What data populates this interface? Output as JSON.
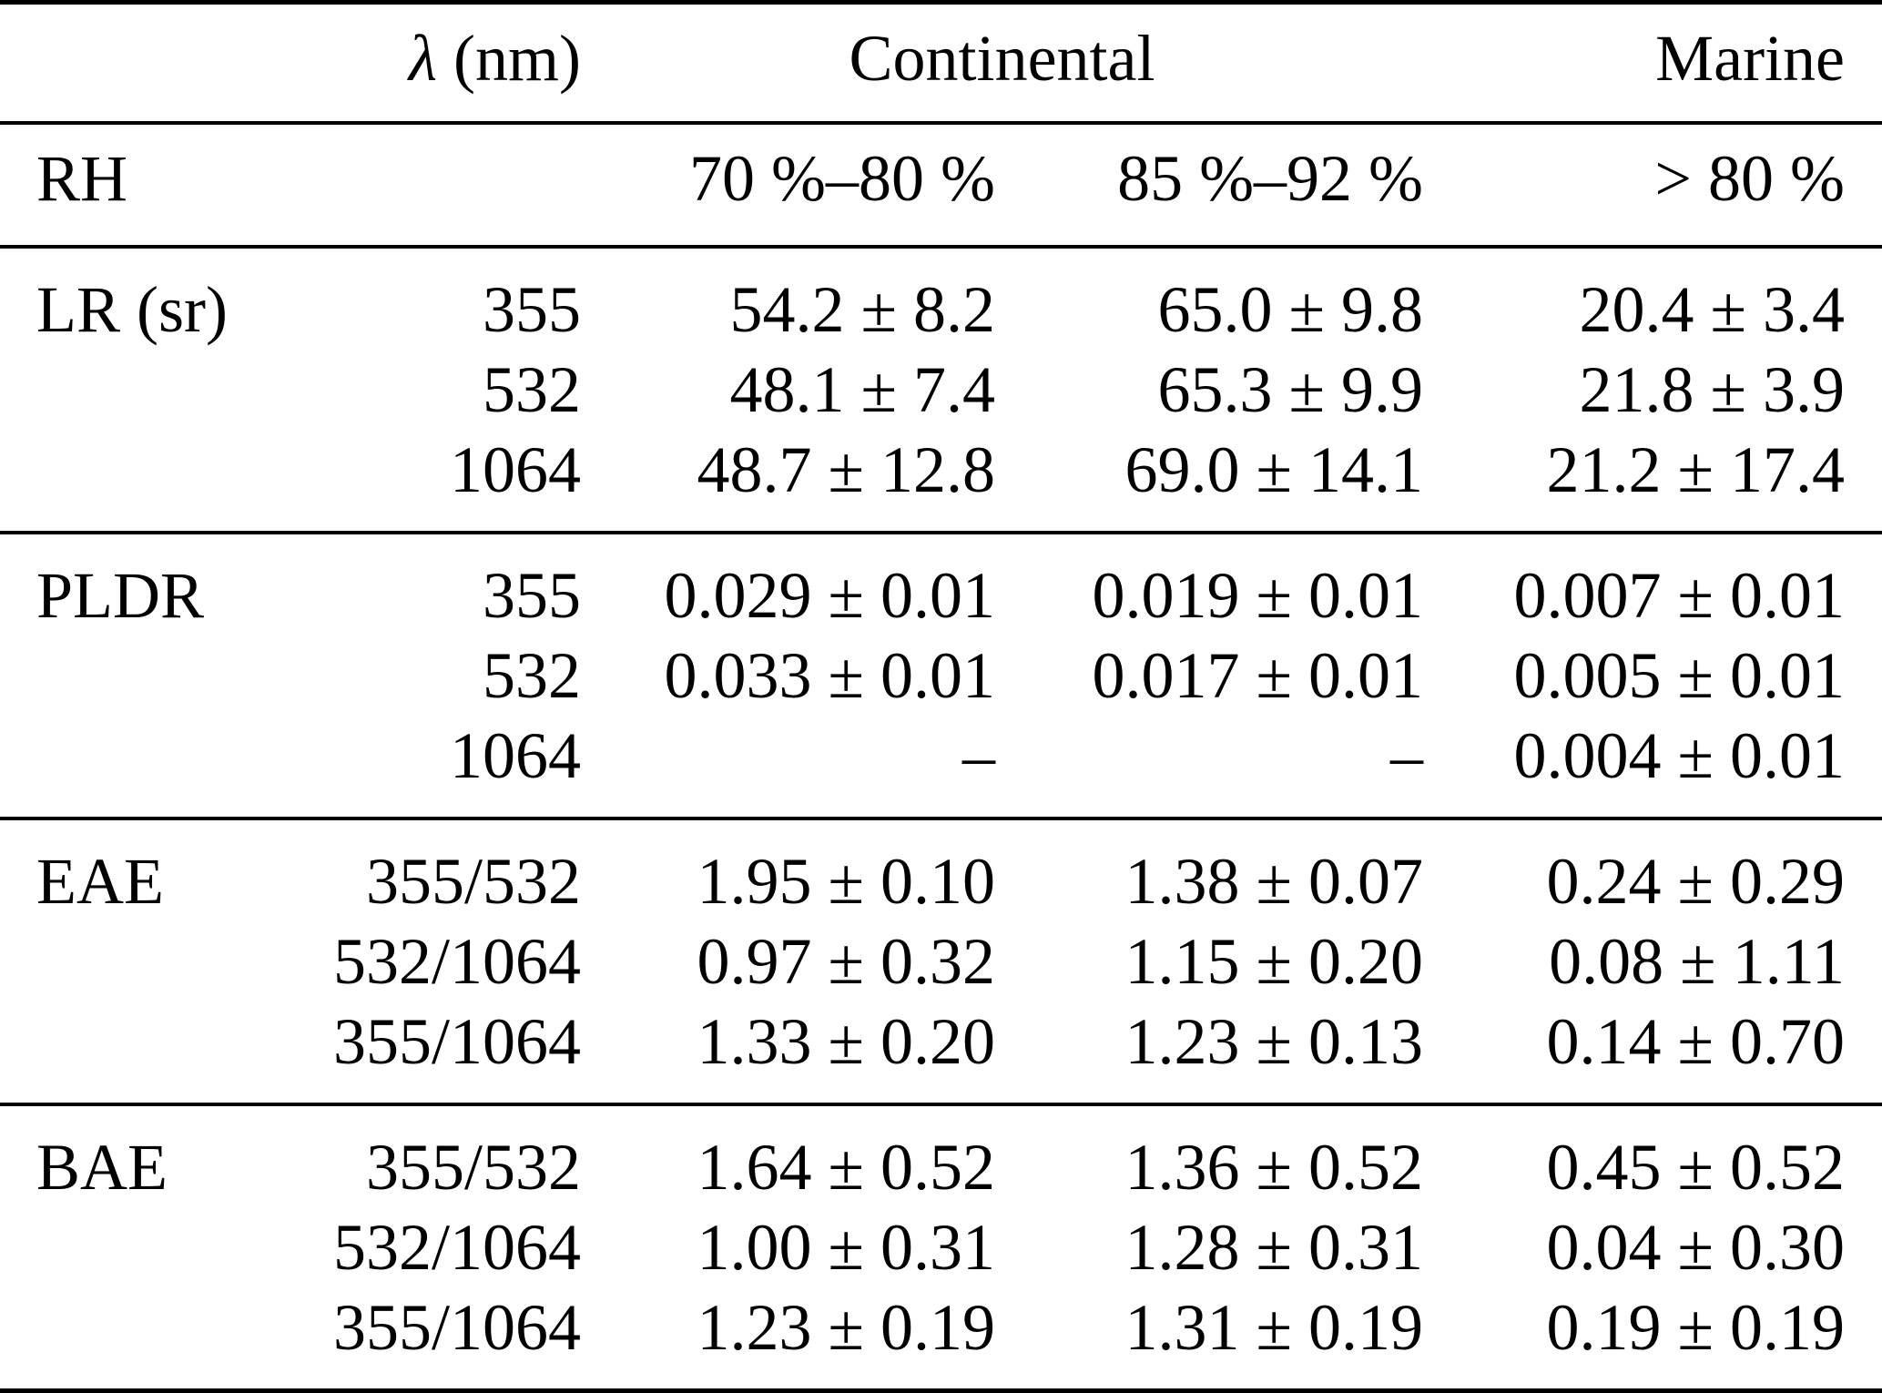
{
  "page": {
    "background_color": "#ffffff",
    "text_color": "#000000",
    "rule_color": "#000000"
  },
  "table": {
    "header": {
      "lambda_symbol": "λ",
      "lambda_unit": " (nm)",
      "continental": "Continental",
      "marine": "Marine"
    },
    "rh": {
      "label": "RH",
      "continental_low": "70 %–80 %",
      "continental_high": "85 %–92 %",
      "marine": "> 80 %"
    },
    "groups": [
      {
        "label": "LR (sr)",
        "rows": [
          {
            "lambda": "355",
            "c1": "54.2 ± 8.2",
            "c2": "65.0 ± 9.8",
            "marine": "20.4 ± 3.4"
          },
          {
            "lambda": "532",
            "c1": "48.1 ± 7.4",
            "c2": "65.3 ± 9.9",
            "marine": "21.8 ± 3.9"
          },
          {
            "lambda": "1064",
            "c1": "48.7 ± 12.8",
            "c2": "69.0 ± 14.1",
            "marine": "21.2 ± 17.4"
          }
        ]
      },
      {
        "label": "PLDR",
        "rows": [
          {
            "lambda": "355",
            "c1": "0.029 ± 0.01",
            "c2": "0.019 ± 0.01",
            "marine": "0.007 ± 0.01"
          },
          {
            "lambda": "532",
            "c1": "0.033 ± 0.01",
            "c2": "0.017 ± 0.01",
            "marine": "0.005 ± 0.01"
          },
          {
            "lambda": "1064",
            "c1": "–",
            "c2": "–",
            "marine": "0.004 ± 0.01"
          }
        ]
      },
      {
        "label": "EAE",
        "rows": [
          {
            "lambda": "355/532",
            "c1": "1.95 ± 0.10",
            "c2": "1.38 ± 0.07",
            "marine": "0.24 ± 0.29"
          },
          {
            "lambda": "532/1064",
            "c1": "0.97 ± 0.32",
            "c2": "1.15 ± 0.20",
            "marine": "0.08 ± 1.11"
          },
          {
            "lambda": "355/1064",
            "c1": "1.33 ± 0.20",
            "c2": "1.23 ± 0.13",
            "marine": "0.14 ± 0.70"
          }
        ]
      },
      {
        "label": "BAE",
        "rows": [
          {
            "lambda": "355/532",
            "c1": "1.64 ± 0.52",
            "c2": "1.36 ± 0.52",
            "marine": "0.45 ± 0.52"
          },
          {
            "lambda": "532/1064",
            "c1": "1.00 ± 0.31",
            "c2": "1.28 ± 0.31",
            "marine": "0.04 ± 0.30"
          },
          {
            "lambda": "355/1064",
            "c1": "1.23 ± 0.19",
            "c2": "1.31 ± 0.19",
            "marine": "0.19 ± 0.19"
          }
        ]
      }
    ]
  }
}
